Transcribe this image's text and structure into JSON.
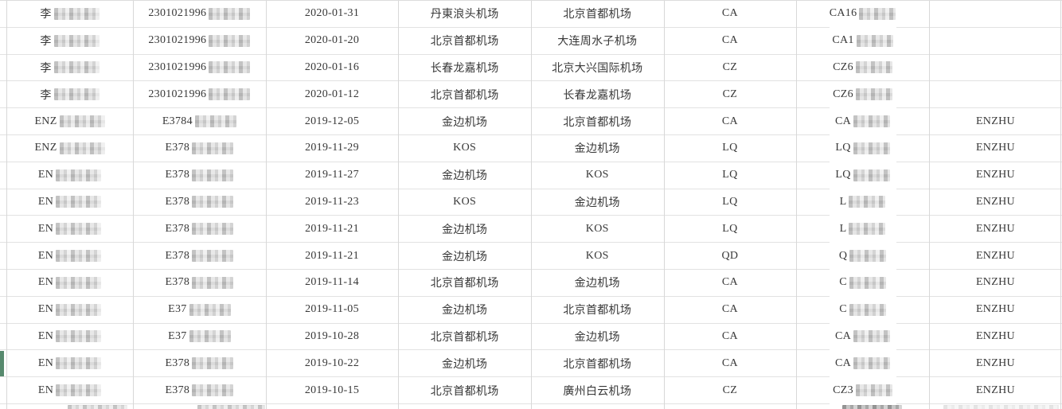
{
  "colors": {
    "background": "#ffffff",
    "text": "#383838",
    "horizontal_border": "#e2e2e2",
    "vertical_gridline": "#d8d8d8",
    "selection_green": "#578a6e"
  },
  "selection": {
    "row_index": 13
  },
  "table": {
    "rows": [
      {
        "name": "李",
        "name_blur": true,
        "id": "2301021996",
        "id_blur": true,
        "date": "2020-01-31",
        "departure": "丹東浪头机场",
        "arrival": "北京首都机场",
        "airline": "CA",
        "flight": "CA16",
        "flight_blur": true,
        "flight_smudge": true,
        "pinyin": ""
      },
      {
        "name": "李",
        "name_blur": true,
        "id": "2301021996",
        "id_blur": true,
        "date": "2020-01-20",
        "departure": "北京首都机场",
        "arrival": "大连周水子机场",
        "airline": "CA",
        "flight": "CA1",
        "flight_blur": true,
        "flight_smudge": false,
        "pinyin": ""
      },
      {
        "name": "李",
        "name_blur": true,
        "id": "2301021996",
        "id_blur": true,
        "date": "2020-01-16",
        "departure": "长春龙嘉机场",
        "arrival": "北京大兴国际机场",
        "airline": "CZ",
        "flight": "CZ6",
        "flight_blur": true,
        "flight_smudge": false,
        "pinyin": ""
      },
      {
        "name": "李",
        "name_blur": true,
        "id": "2301021996",
        "id_blur": true,
        "date": "2020-01-12",
        "departure": "北京首都机场",
        "arrival": "长春龙嘉机场",
        "airline": "CZ",
        "flight": "CZ6",
        "flight_blur": true,
        "flight_smudge": false,
        "pinyin": ""
      },
      {
        "name": "ENZ",
        "name_blur": true,
        "id": "E3784",
        "id_blur": true,
        "date": "2019-12-05",
        "departure": "金边机场",
        "arrival": "北京首都机场",
        "airline": "CA",
        "flight": "CA",
        "flight_blur": true,
        "flight_smudge": true,
        "pinyin": "ENZHU"
      },
      {
        "name": "ENZ",
        "name_blur": true,
        "id": "E378",
        "id_blur": true,
        "date": "2019-11-29",
        "departure": "KOS",
        "arrival": "金边机场",
        "airline": "LQ",
        "flight": "LQ",
        "flight_blur": true,
        "flight_smudge": true,
        "pinyin": "ENZHU"
      },
      {
        "name": "EN",
        "name_blur": true,
        "id": "E378",
        "id_blur": true,
        "date": "2019-11-27",
        "departure": "金边机场",
        "arrival": "KOS",
        "airline": "LQ",
        "flight": "LQ",
        "flight_blur": true,
        "flight_smudge": true,
        "pinyin": "ENZHU"
      },
      {
        "name": "EN",
        "name_blur": true,
        "id": "E378",
        "id_blur": true,
        "date": "2019-11-23",
        "departure": "KOS",
        "arrival": "金边机场",
        "airline": "LQ",
        "flight": "L",
        "flight_blur": true,
        "flight_smudge": false,
        "pinyin": "ENZHU"
      },
      {
        "name": "EN",
        "name_blur": true,
        "id": "E378",
        "id_blur": true,
        "date": "2019-11-21",
        "departure": "金边机场",
        "arrival": "KOS",
        "airline": "LQ",
        "flight": "L",
        "flight_blur": true,
        "flight_smudge": true,
        "pinyin": "ENZHU"
      },
      {
        "name": "EN",
        "name_blur": true,
        "id": "E378",
        "id_blur": true,
        "date": "2019-11-21",
        "departure": "金边机场",
        "arrival": "KOS",
        "airline": "QD",
        "flight": "Q",
        "flight_blur": true,
        "flight_smudge": true,
        "pinyin": "ENZHU"
      },
      {
        "name": "EN",
        "name_blur": true,
        "id": "E378",
        "id_blur": true,
        "date": "2019-11-14",
        "departure": "北京首都机场",
        "arrival": "金边机场",
        "airline": "CA",
        "flight": "C",
        "flight_blur": true,
        "flight_smudge": true,
        "pinyin": "ENZHU"
      },
      {
        "name": "EN",
        "name_blur": true,
        "id": "E37",
        "id_blur": true,
        "date": "2019-11-05",
        "departure": "金边机场",
        "arrival": "北京首都机场",
        "airline": "CA",
        "flight": "C",
        "flight_blur": true,
        "flight_smudge": true,
        "pinyin": "ENZHU"
      },
      {
        "name": "EN",
        "name_blur": true,
        "id": "E37",
        "id_blur": true,
        "date": "2019-10-28",
        "departure": "北京首都机场",
        "arrival": "金边机场",
        "airline": "CA",
        "flight": "CA",
        "flight_blur": true,
        "flight_smudge": true,
        "pinyin": "ENZHU"
      },
      {
        "name": "EN",
        "name_blur": true,
        "id": "E378",
        "id_blur": true,
        "date": "2019-10-22",
        "departure": "金边机场",
        "arrival": "北京首都机场",
        "airline": "CA",
        "flight": "CA",
        "flight_blur": true,
        "flight_smudge": true,
        "pinyin": "ENZHU"
      },
      {
        "name": "EN",
        "name_blur": true,
        "id": "E378",
        "id_blur": true,
        "date": "2019-10-15",
        "departure": "北京首都机场",
        "arrival": "廣州白云机场",
        "airline": "CZ",
        "flight": "CZ3",
        "flight_blur": true,
        "flight_smudge": true,
        "pinyin": "ENZHU"
      }
    ]
  }
}
